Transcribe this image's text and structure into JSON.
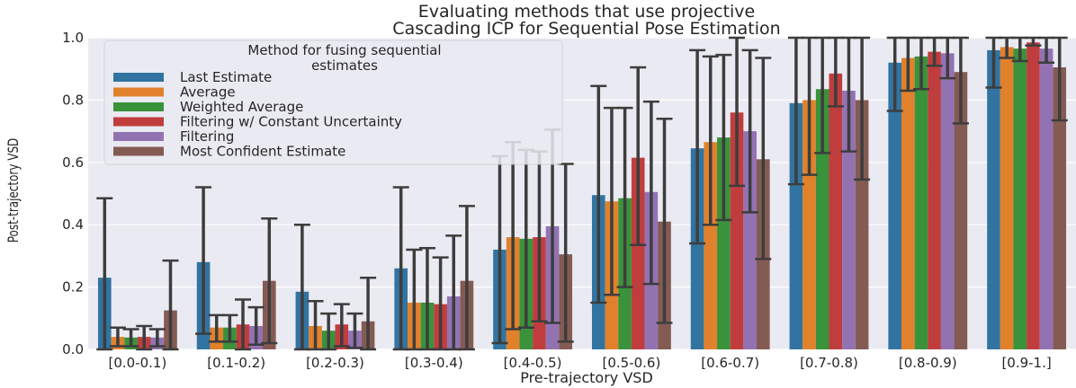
{
  "chart_data": {
    "type": "bar",
    "title": [
      "Evaluating methods that use projective",
      "Cascading ICP for Sequential Pose Estimation"
    ],
    "xlabel": "Pre-trajectory VSD",
    "ylabel": "Post-trajectory VSD",
    "ylim": [
      0,
      1.0
    ],
    "yticks": [
      "0.0",
      "0.2",
      "0.4",
      "0.6",
      "0.8",
      "1.0"
    ],
    "grid": true,
    "legend": {
      "title": "Method for fusing sequential estimates",
      "title_lines": [
        "Method for fusing sequential",
        "estimates"
      ],
      "placement": "upper-left"
    },
    "categories": [
      "[0.0-0.1)",
      "[0.1-0.2)",
      "[0.2-0.3)",
      "[0.3-0.4)",
      "[0.4-0.5)",
      "[0.5-0.6)",
      "[0.6-0.7)",
      "[0.7-0.8)",
      "[0.8-0.9)",
      "[0.9-1.]"
    ],
    "series": [
      {
        "name": "Last Estimate",
        "color": "#3274a1",
        "values": [
          0.23,
          0.28,
          0.185,
          0.26,
          0.32,
          0.495,
          0.645,
          0.79,
          0.92,
          0.96
        ],
        "error_low": [
          0.0,
          0.05,
          0.0,
          0.0,
          0.02,
          0.15,
          0.34,
          0.53,
          0.765,
          0.84
        ],
        "error_high": [
          0.485,
          0.52,
          0.4,
          0.52,
          0.62,
          0.845,
          0.96,
          1.0,
          1.0,
          1.0
        ]
      },
      {
        "name": "Average",
        "color": "#e1812c",
        "values": [
          0.04,
          0.07,
          0.075,
          0.15,
          0.36,
          0.475,
          0.665,
          0.8,
          0.935,
          0.97
        ],
        "error_low": [
          0.01,
          0.025,
          0.0,
          0.0,
          0.065,
          0.175,
          0.4,
          0.56,
          0.83,
          0.935
        ],
        "error_high": [
          0.07,
          0.11,
          0.155,
          0.32,
          0.665,
          0.775,
          0.94,
          1.0,
          1.0,
          1.0
        ]
      },
      {
        "name": "Weighted Average",
        "color": "#3a923a",
        "values": [
          0.038,
          0.07,
          0.06,
          0.15,
          0.355,
          0.485,
          0.68,
          0.835,
          0.94,
          0.965
        ],
        "error_low": [
          0.01,
          0.025,
          0.0,
          0.0,
          0.07,
          0.2,
          0.415,
          0.63,
          0.835,
          0.925
        ],
        "error_high": [
          0.065,
          0.11,
          0.115,
          0.325,
          0.64,
          0.775,
          0.945,
          1.0,
          1.0,
          1.0
        ]
      },
      {
        "name": "Filtering w/ Constant Uncertainty",
        "color": "#c03d3e",
        "values": [
          0.04,
          0.08,
          0.08,
          0.145,
          0.36,
          0.615,
          0.76,
          0.885,
          0.955,
          0.985
        ],
        "error_low": [
          0.0,
          0.0,
          0.01,
          0.0,
          0.09,
          0.335,
          0.525,
          0.78,
          0.91,
          0.975
        ],
        "error_high": [
          0.075,
          0.16,
          0.145,
          0.295,
          0.635,
          0.905,
          1.0,
          1.0,
          1.0,
          1.0
        ]
      },
      {
        "name": "Filtering",
        "color": "#9372b2",
        "values": [
          0.038,
          0.075,
          0.06,
          0.17,
          0.395,
          0.505,
          0.7,
          0.83,
          0.95,
          0.965
        ],
        "error_low": [
          0.01,
          0.015,
          0.005,
          0.0,
          0.085,
          0.21,
          0.44,
          0.635,
          0.87,
          0.92
        ],
        "error_high": [
          0.065,
          0.135,
          0.115,
          0.365,
          0.705,
          0.795,
          0.96,
          1.0,
          1.0,
          1.0
        ]
      },
      {
        "name": "Most Confident Estimate",
        "color": "#845b53",
        "values": [
          0.125,
          0.22,
          0.09,
          0.22,
          0.305,
          0.41,
          0.61,
          0.8,
          0.89,
          0.905
        ],
        "error_low": [
          0.0,
          0.02,
          0.0,
          0.0,
          0.025,
          0.085,
          0.29,
          0.545,
          0.725,
          0.735
        ],
        "error_high": [
          0.285,
          0.42,
          0.23,
          0.46,
          0.595,
          0.74,
          0.935,
          1.0,
          1.0,
          1.0
        ]
      }
    ]
  }
}
